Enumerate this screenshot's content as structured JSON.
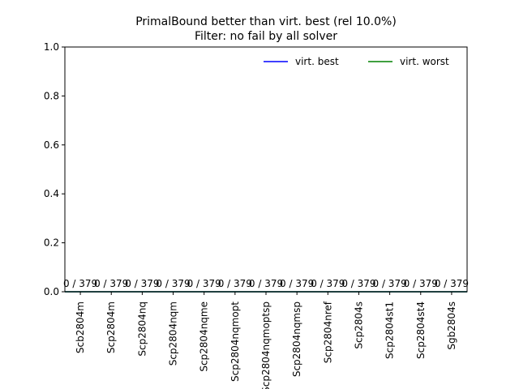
{
  "chart_data": {
    "type": "bar",
    "title": "PrimalBound better than virt. best (rel 10.0%)",
    "subtitle": "Filter: no fail by all solver",
    "xlabel": "",
    "ylabel": "",
    "categories": [
      "Scb2804m",
      "Scp2804m",
      "Scp2804nq",
      "Scp2804nqm",
      "Scp2804nqme",
      "Scp2804nqmopt",
      "Scp2804nqmoptsp",
      "Scp2804nqmsp",
      "Scp2804nref",
      "Scp2804s",
      "Scp2804st1",
      "Scp2804st4",
      "Sgb2804s"
    ],
    "values": [
      0,
      0,
      0,
      0,
      0,
      0,
      0,
      0,
      0,
      0,
      0,
      0,
      0
    ],
    "data_labels": [
      "0 / 379",
      "0 / 379",
      "0 / 379",
      "0 / 379",
      "0 / 379",
      "0 / 379",
      "0 / 379",
      "0 / 379",
      "0 / 379",
      "0 / 379",
      "0 / 379",
      "0 / 379",
      "0 / 379"
    ],
    "ylim": [
      0,
      1.0
    ],
    "yticks": [
      0.0,
      0.2,
      0.4,
      0.6,
      0.8,
      1.0
    ],
    "ytick_labels": [
      "0.0",
      "0.2",
      "0.4",
      "0.6",
      "0.8",
      "1.0"
    ],
    "reference_lines": [
      {
        "name": "virt. best",
        "value": 0,
        "color": "#0000ff"
      },
      {
        "name": "virt. worst",
        "value": 0,
        "color": "#008000"
      }
    ],
    "legend_position": "top-right",
    "grid": false
  }
}
